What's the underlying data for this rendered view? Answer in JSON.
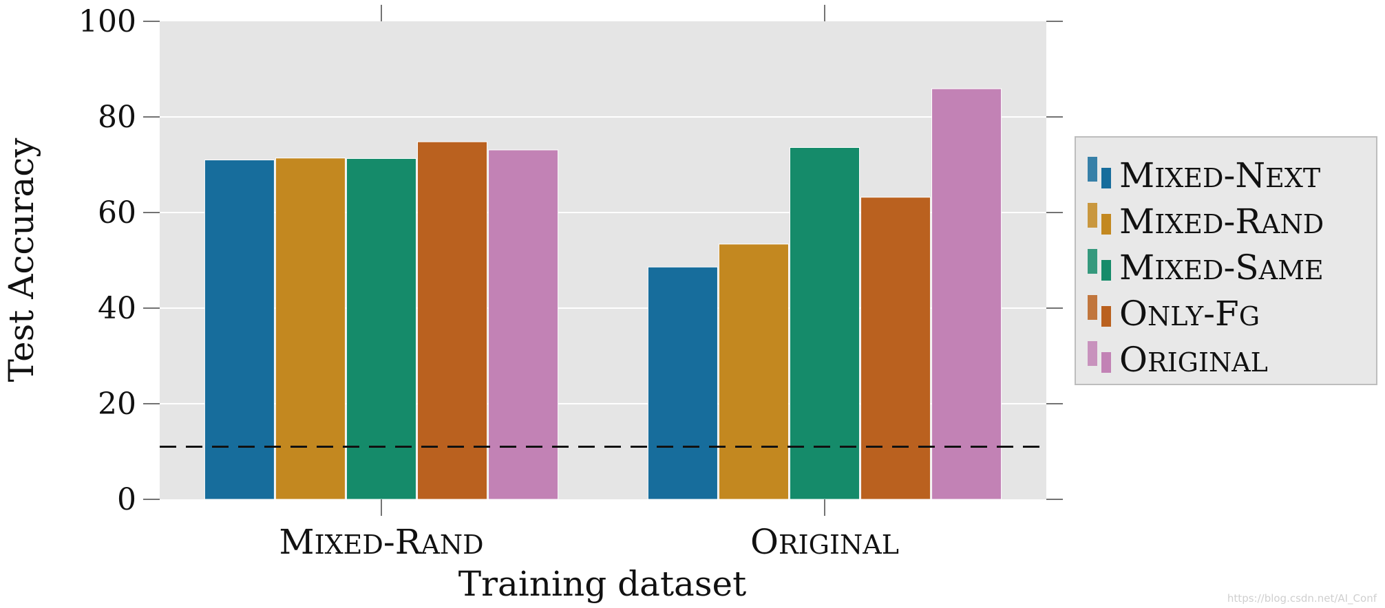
{
  "chart_data": {
    "type": "bar",
    "title": "",
    "xlabel": "Training dataset",
    "ylabel": "Test Accuracy",
    "ylim": [
      0,
      100
    ],
    "yticks": [
      0,
      20,
      40,
      60,
      80,
      100
    ],
    "categories": [
      "Mixed-Rand",
      "Original"
    ],
    "series": [
      {
        "name": "Mixed-Next",
        "values": [
          71.0,
          48.6
        ],
        "color": "#176d9c"
      },
      {
        "name": "Mixed-Rand",
        "values": [
          71.4,
          53.4
        ],
        "color": "#c38820"
      },
      {
        "name": "Mixed-Same",
        "values": [
          71.3,
          73.6
        ],
        "color": "#158b6a"
      },
      {
        "name": "Only-FG",
        "values": [
          74.8,
          63.2
        ],
        "color": "#ba611f"
      },
      {
        "name": "Original",
        "values": [
          73.1,
          85.9
        ],
        "color": "#c282b5"
      }
    ],
    "reference_line": {
      "value": 11,
      "style": "dashed"
    },
    "grid": true,
    "background": "#e5e5e5",
    "legend_position": "right"
  },
  "watermark": "https://blog.csdn.net/AI_Conf"
}
